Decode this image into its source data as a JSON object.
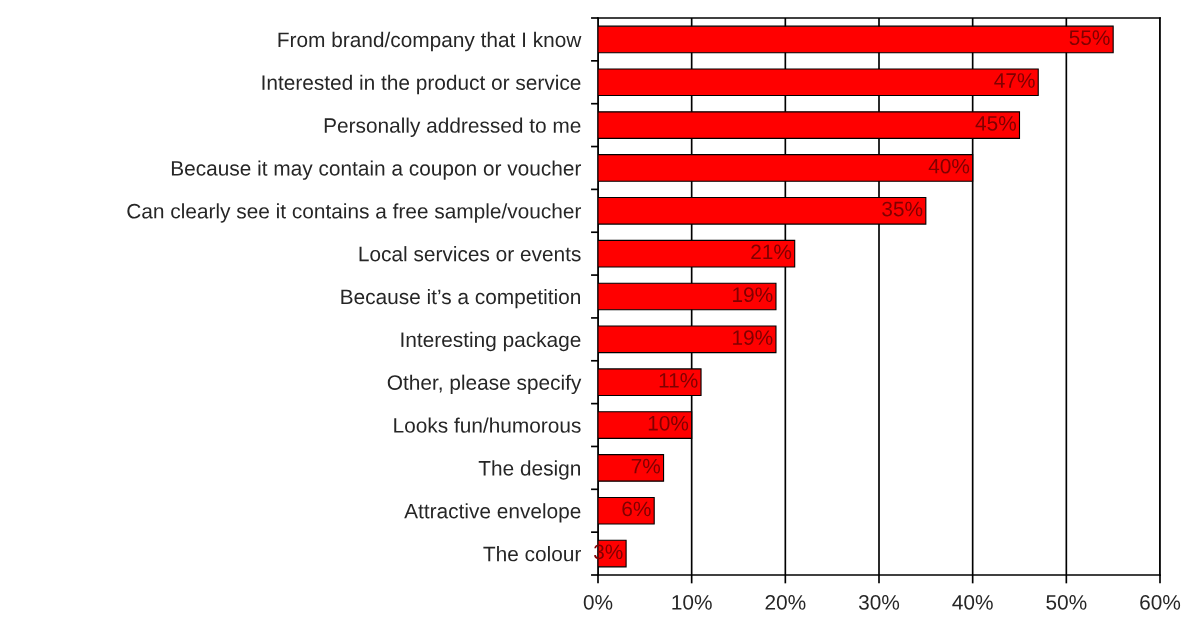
{
  "chart_data": {
    "type": "bar",
    "orientation": "horizontal",
    "categories": [
      "From brand/company that I know",
      "Interested in the product or service",
      "Personally addressed to me",
      "Because it may contain a coupon or voucher",
      "Can clearly see it contains a free sample/voucher",
      "Local services or events",
      "Because it’s a competition",
      "Interesting package",
      "Other, please specify",
      "Looks fun/humorous",
      "The design",
      "Attractive envelope",
      "The colour"
    ],
    "values": [
      55,
      47,
      45,
      40,
      35,
      21,
      19,
      19,
      11,
      10,
      7,
      6,
      3
    ],
    "value_labels": [
      "55%",
      "47%",
      "45%",
      "40%",
      "35%",
      "21%",
      "19%",
      "19%",
      "11%",
      "10%",
      "7%",
      "6%",
      "3%"
    ],
    "color": "#ff0000",
    "xlim": [
      0,
      60
    ],
    "xticks": [
      {
        "value": 0,
        "label": "0%"
      },
      {
        "value": 10,
        "label": "10%"
      },
      {
        "value": 20,
        "label": "20%"
      },
      {
        "value": 30,
        "label": "30%"
      },
      {
        "value": 40,
        "label": "40%"
      },
      {
        "value": 50,
        "label": "50%"
      },
      {
        "value": 60,
        "label": "60%"
      }
    ],
    "grid": "x"
  }
}
